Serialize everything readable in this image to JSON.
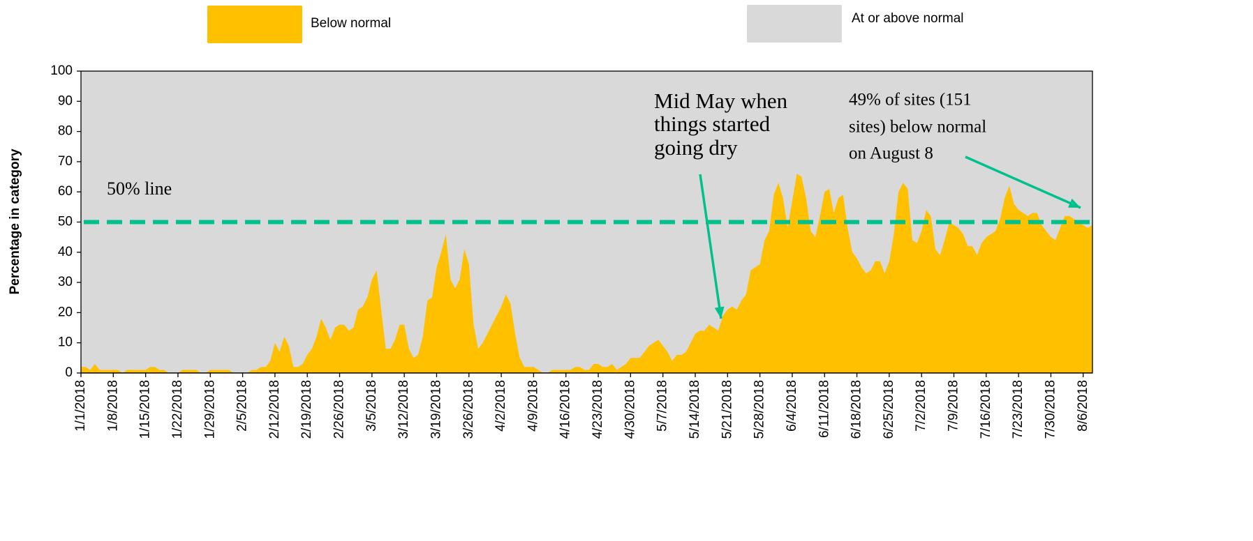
{
  "chart_data": {
    "type": "area",
    "y_label": "Percentage in category",
    "categories": [
      "1/1/2018",
      null,
      null,
      null,
      null,
      null,
      null,
      "1/8/2018",
      null,
      null,
      null,
      null,
      null,
      null,
      "1/15/2018",
      null,
      null,
      null,
      null,
      null,
      null,
      "1/22/2018",
      null,
      null,
      null,
      null,
      null,
      null,
      "1/29/2018",
      null,
      null,
      null,
      null,
      null,
      null,
      "2/5/2018",
      null,
      null,
      null,
      null,
      null,
      null,
      "2/12/2018",
      null,
      null,
      null,
      null,
      null,
      null,
      "2/19/2018",
      null,
      null,
      null,
      null,
      null,
      null,
      "2/26/2018",
      null,
      null,
      null,
      null,
      null,
      null,
      "3/5/2018",
      null,
      null,
      null,
      null,
      null,
      null,
      "3/12/2018",
      null,
      null,
      null,
      null,
      null,
      null,
      "3/19/2018",
      null,
      null,
      null,
      null,
      null,
      null,
      "3/26/2018",
      null,
      null,
      null,
      null,
      null,
      null,
      "4/2/2018",
      null,
      null,
      null,
      null,
      null,
      null,
      "4/9/2018",
      null,
      null,
      null,
      null,
      null,
      null,
      "4/16/2018",
      null,
      null,
      null,
      null,
      null,
      null,
      "4/23/2018",
      null,
      null,
      null,
      null,
      null,
      null,
      "4/30/2018",
      null,
      null,
      null,
      null,
      null,
      null,
      "5/7/2018",
      null,
      null,
      null,
      null,
      null,
      null,
      "5/14/2018",
      null,
      null,
      null,
      null,
      null,
      null,
      "5/21/2018",
      null,
      null,
      null,
      null,
      null,
      null,
      "5/28/2018",
      null,
      null,
      null,
      null,
      null,
      null,
      "6/4/2018",
      null,
      null,
      null,
      null,
      null,
      null,
      "6/11/2018",
      null,
      null,
      null,
      null,
      null,
      null,
      "6/18/2018",
      null,
      null,
      null,
      null,
      null,
      null,
      "6/25/2018",
      null,
      null,
      null,
      null,
      null,
      null,
      "7/2/2018",
      null,
      null,
      null,
      null,
      null,
      null,
      "7/9/2018",
      null,
      null,
      null,
      null,
      null,
      null,
      "7/16/2018",
      null,
      null,
      null,
      null,
      null,
      null,
      "7/23/2018",
      null,
      null,
      null,
      null,
      null,
      null,
      "7/30/2018",
      null,
      null,
      null,
      null,
      null,
      null,
      "8/6/2018",
      null,
      null
    ],
    "series": [
      {
        "name": "Below normal",
        "color": "#FFC000",
        "values": [
          2,
          2,
          1,
          3,
          1,
          1,
          1,
          1,
          1,
          0,
          1,
          1,
          1,
          1,
          1,
          2,
          2,
          1,
          1,
          0,
          0,
          0,
          1,
          1,
          1,
          1,
          0,
          0,
          1,
          1,
          1,
          1,
          1,
          0,
          0,
          0,
          0,
          1,
          1,
          2,
          2,
          4,
          10,
          7,
          12,
          9,
          2,
          2,
          3,
          6,
          8,
          12,
          18,
          15,
          11,
          15,
          16,
          16,
          14,
          15,
          21,
          22,
          25,
          31,
          34,
          21,
          8,
          8,
          11,
          16,
          16,
          8,
          5,
          6,
          12,
          24,
          25,
          35,
          40,
          46,
          31,
          28,
          31,
          41,
          36,
          16,
          8,
          10,
          13,
          16,
          19,
          22,
          26,
          23,
          13,
          5,
          2,
          2,
          2,
          1,
          0,
          0,
          1,
          1,
          1,
          1,
          1,
          2,
          2,
          1,
          1,
          3,
          3,
          2,
          2,
          3,
          1,
          2,
          3,
          5,
          5,
          5,
          7,
          9,
          10,
          11,
          9,
          7,
          4,
          6,
          6,
          7,
          10,
          13,
          14,
          14,
          16,
          15,
          14,
          19,
          21,
          22,
          21,
          24,
          26,
          34,
          35,
          36,
          44,
          47,
          59,
          63,
          58,
          48,
          57,
          66,
          65,
          58,
          47,
          45,
          52,
          60,
          61,
          53,
          58,
          59,
          48,
          40,
          38,
          35,
          33,
          34,
          37,
          37,
          33,
          37,
          46,
          60,
          63,
          61,
          44,
          43,
          47,
          54,
          52,
          41,
          39,
          44,
          50,
          49,
          48,
          46,
          42,
          42,
          39,
          43,
          45,
          46,
          47,
          51,
          58,
          62,
          56,
          54,
          53,
          52,
          53,
          53,
          49,
          47,
          45,
          44,
          48,
          52,
          52,
          51,
          50,
          49,
          48,
          49
        ]
      },
      {
        "name": "At or above normal",
        "color": "#D9D9D9"
      }
    ],
    "ylim": [
      0,
      100
    ],
    "yticks": [
      0,
      10,
      20,
      30,
      40,
      50,
      60,
      70,
      80,
      90,
      100
    ],
    "reference_line": {
      "value": 50,
      "label": "50% line",
      "color": "#00C08B"
    },
    "annotations": [
      {
        "lines": [
          "Mid May when",
          "things started",
          "going dry"
        ]
      },
      {
        "lines": [
          "49% of sites (151",
          "sites) below normal",
          "on August 8"
        ]
      }
    ]
  }
}
